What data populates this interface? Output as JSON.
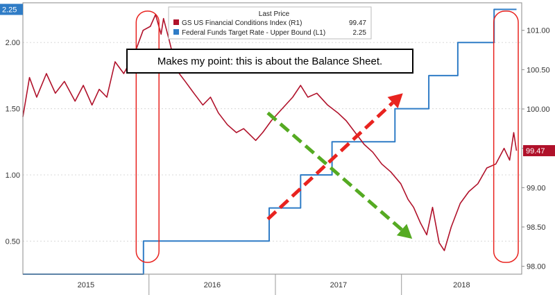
{
  "chart_data": {
    "type": "line",
    "legend": {
      "title": "Last Price",
      "items": [
        {
          "label": "GS US Financial Conditions Index",
          "axis_tag": "(R1)",
          "last": "99.47",
          "color": "#b0112a"
        },
        {
          "label": "Federal Funds Target Rate - Upper Bound",
          "axis_tag": "(L1)",
          "last": "2.25",
          "color": "#2f7cc6"
        }
      ]
    },
    "annotation": "Makes my point: this is about the Balance Sheet.",
    "x_ticks": [
      "2015",
      "2016",
      "2017",
      "2018"
    ],
    "left_axis": {
      "range": [
        0.25,
        2.3
      ],
      "ticks": [
        "0.50",
        "1.00",
        "1.50",
        "2.00"
      ],
      "last_tag": "2.25"
    },
    "right_axis": {
      "range": [
        97.9,
        101.35
      ],
      "ticks": [
        "98.00",
        "98.50",
        "99.00",
        "99.50",
        "100.00",
        "100.50",
        "101.00"
      ],
      "last_tag": "99.47"
    },
    "x_range": [
      "2015-01-01",
      "2018-12-15"
    ],
    "series": [
      {
        "name": "Federal Funds Target Rate - Upper Bound",
        "axis": "left",
        "color": "#2f7cc6",
        "step": true,
        "points": [
          [
            "2015-01-01",
            0.25
          ],
          [
            "2015-12-16",
            0.5
          ],
          [
            "2016-12-14",
            0.75
          ],
          [
            "2017-03-15",
            1.0
          ],
          [
            "2017-06-14",
            1.25
          ],
          [
            "2017-12-13",
            1.5
          ],
          [
            "2018-03-21",
            1.75
          ],
          [
            "2018-06-13",
            2.0
          ],
          [
            "2018-09-26",
            2.25
          ],
          [
            "2018-11-30",
            2.25
          ]
        ]
      },
      {
        "name": "GS US Financial Conditions Index",
        "axis": "right",
        "color": "#b0112a",
        "step": false,
        "points": [
          [
            "2015-01-01",
            99.9
          ],
          [
            "2015-01-20",
            100.4
          ],
          [
            "2015-02-10",
            100.15
          ],
          [
            "2015-03-10",
            100.45
          ],
          [
            "2015-04-05",
            100.2
          ],
          [
            "2015-05-01",
            100.35
          ],
          [
            "2015-06-01",
            100.1
          ],
          [
            "2015-06-25",
            100.3
          ],
          [
            "2015-07-20",
            100.05
          ],
          [
            "2015-08-10",
            100.25
          ],
          [
            "2015-09-01",
            100.15
          ],
          [
            "2015-09-25",
            100.6
          ],
          [
            "2015-10-20",
            100.45
          ],
          [
            "2015-11-20",
            100.7
          ],
          [
            "2015-12-15",
            101.0
          ],
          [
            "2016-01-05",
            101.05
          ],
          [
            "2016-01-20",
            101.2
          ],
          [
            "2016-02-05",
            100.95
          ],
          [
            "2016-02-12",
            101.15
          ],
          [
            "2016-03-01",
            100.85
          ],
          [
            "2016-03-20",
            100.5
          ],
          [
            "2016-04-15",
            100.35
          ],
          [
            "2016-05-10",
            100.2
          ],
          [
            "2016-06-05",
            100.05
          ],
          [
            "2016-06-27",
            100.15
          ],
          [
            "2016-07-20",
            99.95
          ],
          [
            "2016-08-15",
            99.8
          ],
          [
            "2016-09-10",
            99.7
          ],
          [
            "2016-10-01",
            99.75
          ],
          [
            "2016-11-05",
            99.6
          ],
          [
            "2016-11-25",
            99.7
          ],
          [
            "2016-12-20",
            99.85
          ],
          [
            "2017-01-20",
            100.0
          ],
          [
            "2017-02-20",
            100.15
          ],
          [
            "2017-03-15",
            100.3
          ],
          [
            "2017-04-05",
            100.15
          ],
          [
            "2017-05-01",
            100.2
          ],
          [
            "2017-06-01",
            100.05
          ],
          [
            "2017-07-01",
            99.95
          ],
          [
            "2017-07-25",
            99.85
          ],
          [
            "2017-08-20",
            99.7
          ],
          [
            "2017-09-15",
            99.55
          ],
          [
            "2017-10-10",
            99.45
          ],
          [
            "2017-11-05",
            99.3
          ],
          [
            "2017-12-01",
            99.2
          ],
          [
            "2017-12-30",
            99.05
          ],
          [
            "2018-01-20",
            98.85
          ],
          [
            "2018-02-05",
            98.75
          ],
          [
            "2018-02-25",
            98.55
          ],
          [
            "2018-03-15",
            98.4
          ],
          [
            "2018-04-01",
            98.75
          ],
          [
            "2018-04-20",
            98.3
          ],
          [
            "2018-05-05",
            98.2
          ],
          [
            "2018-05-25",
            98.5
          ],
          [
            "2018-06-20",
            98.8
          ],
          [
            "2018-07-15",
            98.95
          ],
          [
            "2018-08-10",
            99.05
          ],
          [
            "2018-09-05",
            99.25
          ],
          [
            "2018-10-01",
            99.3
          ],
          [
            "2018-10-25",
            99.5
          ],
          [
            "2018-11-10",
            99.35
          ],
          [
            "2018-11-22",
            99.7
          ],
          [
            "2018-11-30",
            99.47
          ]
        ]
      }
    ],
    "arrows": [
      {
        "name": "red-rising-arrow",
        "color": "#e8231f",
        "from": [
          "2016-12-10",
          98.6
        ],
        "to": [
          "2018-01-05",
          100.2
        ]
      },
      {
        "name": "green-falling-arrow",
        "color": "#55aa22",
        "from": [
          "2016-12-10",
          99.95
        ],
        "to": [
          "2018-02-01",
          98.35
        ]
      }
    ],
    "highlights": [
      {
        "name": "highlight-oval-2015",
        "from": "2015-11-25",
        "to": "2016-01-30"
      },
      {
        "name": "highlight-oval-2018",
        "from": "2018-09-25",
        "to": "2018-12-05"
      }
    ]
  }
}
